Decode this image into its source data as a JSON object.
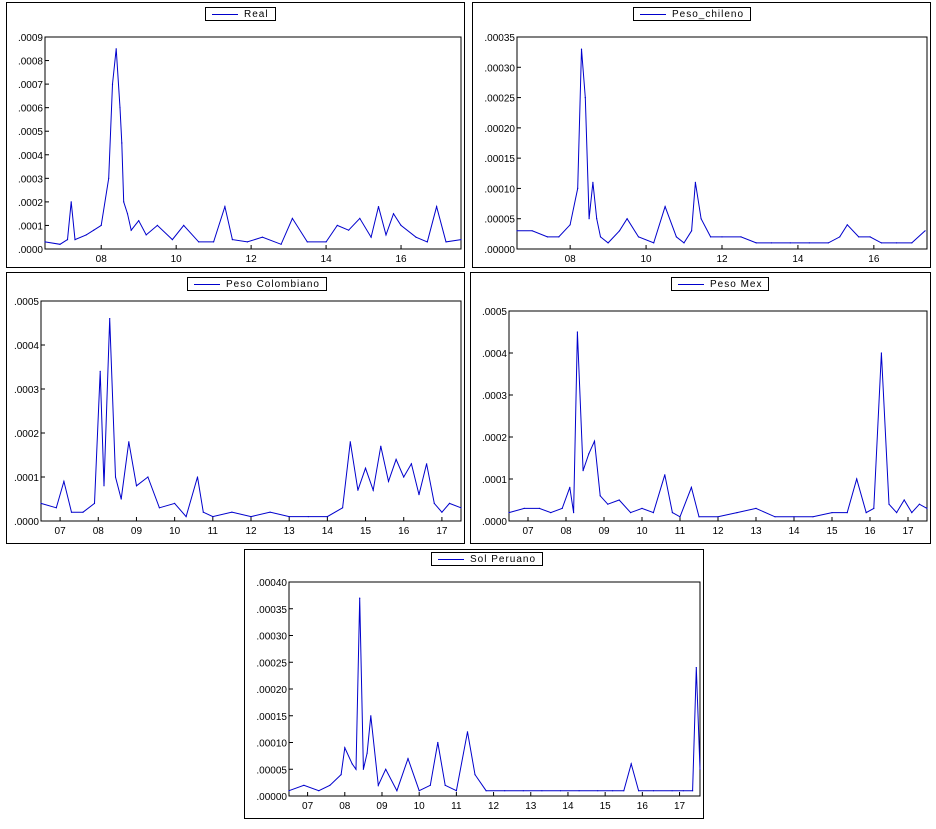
{
  "colors": {
    "series": "#0000cc",
    "axis": "#000000",
    "background": "#ffffff"
  },
  "chart_data": [
    {
      "type": "line",
      "legend": "Real",
      "ylim": [
        0,
        0.0009
      ],
      "yticks": [
        0,
        0.0001,
        0.0002,
        0.0003,
        0.0004,
        0.0005,
        0.0006,
        0.0007,
        0.0008,
        0.0009
      ],
      "ytick_labels": [
        ".0000",
        ".0001",
        ".0002",
        ".0003",
        ".0004",
        ".0005",
        ".0006",
        ".0007",
        ".0008",
        ".0009"
      ],
      "xlim": [
        2006.5,
        2017.6
      ],
      "xticks": [
        2008,
        2010,
        2012,
        2014,
        2016
      ],
      "xtick_labels": [
        "08",
        "10",
        "12",
        "14",
        "16"
      ],
      "x": [
        2006.5,
        2006.9,
        2007.1,
        2007.2,
        2007.3,
        2007.6,
        2007.8,
        2008.0,
        2008.2,
        2008.3,
        2008.4,
        2008.5,
        2008.55,
        2008.6,
        2008.7,
        2008.8,
        2009.0,
        2009.2,
        2009.5,
        2009.9,
        2010.2,
        2010.6,
        2011.0,
        2011.3,
        2011.5,
        2011.9,
        2012.3,
        2012.8,
        2013.1,
        2013.5,
        2014.0,
        2014.3,
        2014.6,
        2014.9,
        2015.2,
        2015.4,
        2015.6,
        2015.8,
        2016.0,
        2016.4,
        2016.7,
        2016.95,
        2017.2,
        2017.6
      ],
      "y": [
        3e-05,
        2e-05,
        4e-05,
        0.0002,
        4e-05,
        6e-05,
        8e-05,
        0.0001,
        0.0003,
        0.0007,
        0.00085,
        0.0006,
        0.00045,
        0.0002,
        0.00015,
        8e-05,
        0.00012,
        6e-05,
        0.0001,
        4e-05,
        0.0001,
        3e-05,
        3e-05,
        0.00018,
        4e-05,
        3e-05,
        5e-05,
        2e-05,
        0.00013,
        3e-05,
        3e-05,
        0.0001,
        8e-05,
        0.00013,
        5e-05,
        0.00018,
        6e-05,
        0.00015,
        0.0001,
        5e-05,
        3e-05,
        0.00018,
        3e-05,
        4e-05
      ]
    },
    {
      "type": "line",
      "legend": "Peso_chileno",
      "ylim": [
        0,
        0.00035
      ],
      "yticks": [
        0,
        5e-05,
        0.0001,
        0.00015,
        0.0002,
        0.00025,
        0.0003,
        0.00035
      ],
      "ytick_labels": [
        ".00000",
        ".00005",
        ".00010",
        ".00015",
        ".00020",
        ".00025",
        ".00030",
        ".00035"
      ],
      "xlim": [
        2006.6,
        2017.4
      ],
      "xticks": [
        2008,
        2010,
        2012,
        2014,
        2016
      ],
      "xtick_labels": [
        "08",
        "10",
        "12",
        "14",
        "16"
      ],
      "x": [
        2006.6,
        2007.0,
        2007.4,
        2007.7,
        2008.0,
        2008.2,
        2008.3,
        2008.4,
        2008.5,
        2008.6,
        2008.7,
        2008.8,
        2009.0,
        2009.3,
        2009.5,
        2009.8,
        2010.2,
        2010.5,
        2010.8,
        2011.0,
        2011.2,
        2011.3,
        2011.45,
        2011.7,
        2012.0,
        2012.5,
        2012.9,
        2013.3,
        2013.8,
        2014.3,
        2014.8,
        2015.1,
        2015.3,
        2015.6,
        2015.9,
        2016.2,
        2016.6,
        2017.0,
        2017.35
      ],
      "y": [
        3e-05,
        3e-05,
        2e-05,
        2e-05,
        4e-05,
        0.0001,
        0.00033,
        0.00025,
        5e-05,
        0.00011,
        5e-05,
        2e-05,
        1e-05,
        3e-05,
        5e-05,
        2e-05,
        1e-05,
        7e-05,
        2e-05,
        1e-05,
        3e-05,
        0.00011,
        5e-05,
        2e-05,
        2e-05,
        2e-05,
        1e-05,
        1e-05,
        1e-05,
        1e-05,
        1e-05,
        2e-05,
        4e-05,
        2e-05,
        2e-05,
        1e-05,
        1e-05,
        1e-05,
        3e-05
      ]
    },
    {
      "type": "line",
      "legend": "Peso Colombiano",
      "ylim": [
        0,
        0.0005
      ],
      "yticks": [
        0,
        0.0001,
        0.0002,
        0.0003,
        0.0004,
        0.0005
      ],
      "ytick_labels": [
        ".0000",
        ".0001",
        ".0002",
        ".0003",
        ".0004",
        ".0005"
      ],
      "xlim": [
        2006.5,
        2017.5
      ],
      "xticks": [
        2007,
        2008,
        2009,
        2010,
        2011,
        2012,
        2013,
        2014,
        2015,
        2016,
        2017
      ],
      "xtick_labels": [
        "07",
        "08",
        "09",
        "10",
        "11",
        "12",
        "13",
        "14",
        "15",
        "16",
        "17"
      ],
      "x": [
        2006.5,
        2006.9,
        2007.1,
        2007.3,
        2007.6,
        2007.9,
        2008.05,
        2008.15,
        2008.3,
        2008.45,
        2008.6,
        2008.8,
        2009.0,
        2009.3,
        2009.6,
        2010.0,
        2010.3,
        2010.6,
        2010.75,
        2011.0,
        2011.5,
        2012.0,
        2012.5,
        2013.0,
        2013.5,
        2014.0,
        2014.4,
        2014.6,
        2014.8,
        2015.0,
        2015.2,
        2015.4,
        2015.6,
        2015.8,
        2016.0,
        2016.2,
        2016.4,
        2016.6,
        2016.8,
        2017.0,
        2017.2,
        2017.5
      ],
      "y": [
        4e-05,
        3e-05,
        9e-05,
        2e-05,
        2e-05,
        4e-05,
        0.00034,
        8e-05,
        0.00046,
        0.0001,
        5e-05,
        0.00018,
        8e-05,
        0.0001,
        3e-05,
        4e-05,
        1e-05,
        0.0001,
        2e-05,
        1e-05,
        2e-05,
        1e-05,
        2e-05,
        1e-05,
        1e-05,
        1e-05,
        3e-05,
        0.00018,
        7e-05,
        0.00012,
        7e-05,
        0.00017,
        9e-05,
        0.00014,
        0.0001,
        0.00013,
        6e-05,
        0.00013,
        4e-05,
        2e-05,
        4e-05,
        3e-05
      ]
    },
    {
      "type": "line",
      "legend": "Peso Mex",
      "ylim": [
        0,
        0.0005
      ],
      "yticks": [
        0,
        0.0001,
        0.0002,
        0.0003,
        0.0004,
        0.0005
      ],
      "ytick_labels": [
        ".0000",
        ".0001",
        ".0002",
        ".0003",
        ".0004",
        ".0005"
      ],
      "xlim": [
        2006.5,
        2017.5
      ],
      "xticks": [
        2007,
        2008,
        2009,
        2010,
        2011,
        2012,
        2013,
        2014,
        2015,
        2016,
        2017
      ],
      "xtick_labels": [
        "07",
        "08",
        "09",
        "10",
        "11",
        "12",
        "13",
        "14",
        "15",
        "16",
        "17"
      ],
      "x": [
        2006.5,
        2006.9,
        2007.3,
        2007.6,
        2007.9,
        2008.1,
        2008.2,
        2008.3,
        2008.45,
        2008.6,
        2008.75,
        2008.9,
        2009.1,
        2009.4,
        2009.7,
        2010.0,
        2010.3,
        2010.6,
        2010.8,
        2011.0,
        2011.3,
        2011.5,
        2012.0,
        2012.5,
        2013.0,
        2013.5,
        2014.0,
        2014.5,
        2015.0,
        2015.4,
        2015.65,
        2015.9,
        2016.1,
        2016.3,
        2016.5,
        2016.7,
        2016.9,
        2017.1,
        2017.3,
        2017.5
      ],
      "y": [
        2e-05,
        3e-05,
        3e-05,
        2e-05,
        3e-05,
        8e-05,
        2e-05,
        0.00045,
        0.00012,
        0.00016,
        0.00019,
        6e-05,
        4e-05,
        5e-05,
        2e-05,
        3e-05,
        2e-05,
        0.00011,
        2e-05,
        1e-05,
        8e-05,
        1e-05,
        1e-05,
        2e-05,
        3e-05,
        1e-05,
        1e-05,
        1e-05,
        2e-05,
        2e-05,
        0.0001,
        2e-05,
        3e-05,
        0.0004,
        4e-05,
        2e-05,
        5e-05,
        2e-05,
        4e-05,
        3e-05
      ]
    },
    {
      "type": "line",
      "legend": "Sol Peruano",
      "ylim": [
        0,
        0.0004
      ],
      "yticks": [
        0,
        5e-05,
        0.0001,
        0.00015,
        0.0002,
        0.00025,
        0.0003,
        0.00035,
        0.0004
      ],
      "ytick_labels": [
        ".00000",
        ".00005",
        ".00010",
        ".00015",
        ".00020",
        ".00025",
        ".00030",
        ".00035",
        ".00040"
      ],
      "xlim": [
        2006.5,
        2017.55
      ],
      "xticks": [
        2007,
        2008,
        2009,
        2010,
        2011,
        2012,
        2013,
        2014,
        2015,
        2016,
        2017
      ],
      "xtick_labels": [
        "07",
        "08",
        "09",
        "10",
        "11",
        "12",
        "13",
        "14",
        "15",
        "16",
        "17"
      ],
      "x": [
        2006.5,
        2006.9,
        2007.3,
        2007.6,
        2007.9,
        2008.0,
        2008.2,
        2008.3,
        2008.4,
        2008.5,
        2008.6,
        2008.7,
        2008.9,
        2009.1,
        2009.4,
        2009.7,
        2010.0,
        2010.3,
        2010.5,
        2010.7,
        2011.0,
        2011.3,
        2011.5,
        2011.8,
        2012.3,
        2012.8,
        2013.3,
        2013.8,
        2014.3,
        2014.8,
        2015.2,
        2015.5,
        2015.7,
        2015.9,
        2016.3,
        2016.8,
        2017.1,
        2017.35,
        2017.45,
        2017.55
      ],
      "y": [
        1e-05,
        2e-05,
        1e-05,
        2e-05,
        4e-05,
        9e-05,
        6e-05,
        5e-05,
        0.00037,
        5e-05,
        8e-05,
        0.00015,
        2e-05,
        5e-05,
        1e-05,
        7e-05,
        1e-05,
        2e-05,
        0.0001,
        2e-05,
        1e-05,
        0.00012,
        4e-05,
        1e-05,
        1e-05,
        1e-05,
        1e-05,
        1e-05,
        1e-05,
        1e-05,
        1e-05,
        1e-05,
        6e-05,
        1e-05,
        1e-05,
        1e-05,
        1e-05,
        1e-05,
        0.00024,
        5e-05
      ]
    }
  ]
}
